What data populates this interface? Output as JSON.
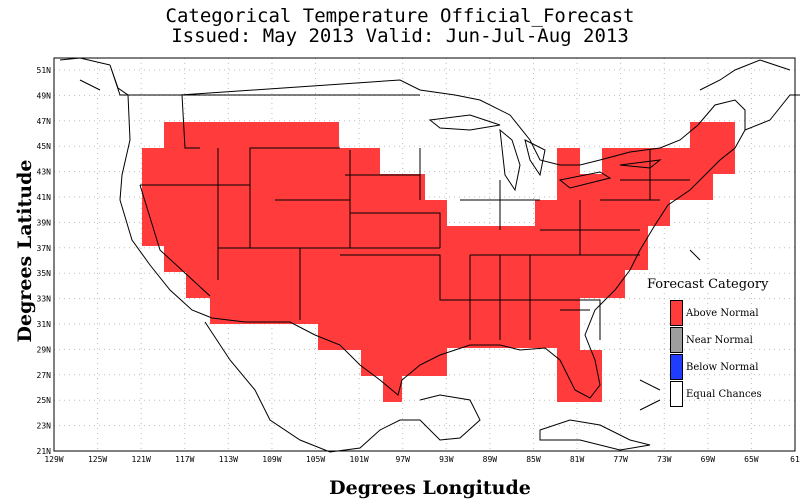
{
  "title": {
    "line1": "Categorical Temperature Official_Forecast",
    "line2": "Issued: May 2013 Valid: Jun-Jul-Aug 2013"
  },
  "axes": {
    "ylabel": "Degrees Latitude",
    "xlabel": "Degrees Longitude",
    "lat_ticks": [
      "51N",
      "49N",
      "47N",
      "45N",
      "43N",
      "41N",
      "39N",
      "37N",
      "35N",
      "33N",
      "31N",
      "29N",
      "27N",
      "25N",
      "23N",
      "21N"
    ],
    "lon_ticks": [
      "129W",
      "125W",
      "121W",
      "117W",
      "113W",
      "109W",
      "105W",
      "101W",
      "97W",
      "93W",
      "89W",
      "85W",
      "81W",
      "77W",
      "73W",
      "69W",
      "65W",
      "61"
    ]
  },
  "legend": {
    "title": "Forecast Category",
    "items": [
      {
        "label": "Above Normal",
        "color": "#ff3b3b"
      },
      {
        "label": "Near Normal",
        "color": "#9e9e9e"
      },
      {
        "label": "Below Normal",
        "color": "#1f3cff"
      },
      {
        "label": "Equal Chances",
        "color": "#ffffff"
      }
    ]
  },
  "colors": {
    "above_normal": "#ff3b3b",
    "grid": "#bdbdbd"
  }
}
